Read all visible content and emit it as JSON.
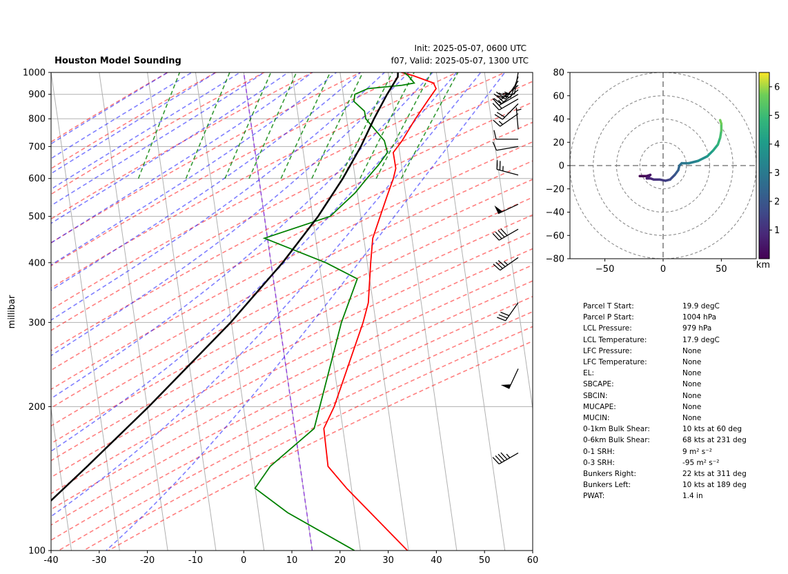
{
  "header": {
    "title": "Houston Model Sounding",
    "init": "Init: 2025-05-07, 0600 UTC",
    "valid": "f07, Valid: 2025-05-07, 1300 UTC"
  },
  "chart_data": [
    {
      "type": "line",
      "subtype": "skew-T log-P sounding",
      "title": "Houston Model Sounding",
      "ylabel": "millibar",
      "xlabel": "",
      "xlim": [
        -40,
        60
      ],
      "ylim": [
        1000,
        100
      ],
      "y_scale": "log",
      "x_ticks": [
        -40,
        -30,
        -20,
        -10,
        0,
        10,
        20,
        30,
        40,
        50,
        60
      ],
      "y_ticks": [
        100,
        200,
        300,
        400,
        500,
        600,
        700,
        800,
        900,
        1000
      ],
      "grid": true,
      "background_lines": [
        "dry adiabats (red dashed)",
        "moist adiabats (blue dashed)",
        "mixing ratio (green dashed)",
        "0 degC isotherm (purple dashed)",
        "skewed isotherms (gray)"
      ],
      "series": [
        {
          "role": "temperature",
          "color": "#ff0000",
          "points": [
            [
              1000,
              18.5
            ],
            [
              985,
              21.0
            ],
            [
              950,
              25.5
            ],
            [
              925,
              26.2
            ],
            [
              880,
              25.0
            ],
            [
              800,
              22.8
            ],
            [
              720,
              20.7
            ],
            [
              680,
              19.2
            ],
            [
              660,
              19.6
            ],
            [
              630,
              20.2
            ],
            [
              600,
              20.0
            ],
            [
              550,
              19.2
            ],
            [
              450,
              17.5
            ],
            [
              400,
              17.8
            ],
            [
              330,
              18.5
            ],
            [
              300,
              18.0
            ],
            [
              200,
              14.5
            ],
            [
              180,
              13.0
            ],
            [
              150,
              15.0
            ],
            [
              135,
              19.5
            ],
            [
              100,
              34.0
            ]
          ]
        },
        {
          "role": "dewpoint",
          "color": "#008000",
          "points": [
            [
              1000,
              19.0
            ],
            [
              985,
              20.0
            ],
            [
              950,
              21.5
            ],
            [
              940,
              19.0
            ],
            [
              925,
              12.0
            ],
            [
              900,
              9.5
            ],
            [
              870,
              9.5
            ],
            [
              830,
              12.0
            ],
            [
              800,
              12.5
            ],
            [
              720,
              17.0
            ],
            [
              680,
              18.0
            ],
            [
              640,
              16.5
            ],
            [
              600,
              14.5
            ],
            [
              560,
              12.5
            ],
            [
              500,
              8.0
            ],
            [
              450,
              -5.0
            ],
            [
              400,
              8.5
            ],
            [
              370,
              15.5
            ],
            [
              300,
              13.5
            ],
            [
              180,
              11.0
            ],
            [
              150,
              3.0
            ],
            [
              135,
              0.5
            ],
            [
              120,
              8.0
            ],
            [
              100,
              23.0
            ]
          ]
        },
        {
          "role": "parcel profile",
          "color": "#000000",
          "points": [
            [
              1000,
              17.8
            ],
            [
              979,
              17.9
            ],
            [
              900,
              16.2
            ],
            [
              800,
              14.2
            ],
            [
              700,
              12.3
            ],
            [
              600,
              9.5
            ],
            [
              500,
              5.5
            ],
            [
              400,
              -0.5
            ],
            [
              300,
              -9.5
            ],
            [
              250,
              -16.0
            ],
            [
              200,
              -24.0
            ],
            [
              150,
              -35.0
            ],
            [
              100,
              -51.0
            ]
          ]
        }
      ],
      "wind_barbs": [
        {
          "p": 1000,
          "speed_kt": 10,
          "dir_deg": 190
        },
        {
          "p": 980,
          "speed_kt": 20,
          "dir_deg": 200
        },
        {
          "p": 960,
          "speed_kt": 25,
          "dir_deg": 215
        },
        {
          "p": 940,
          "speed_kt": 20,
          "dir_deg": 230
        },
        {
          "p": 920,
          "speed_kt": 15,
          "dir_deg": 230
        },
        {
          "p": 900,
          "speed_kt": 15,
          "dir_deg": 240
        },
        {
          "p": 880,
          "speed_kt": 20,
          "dir_deg": 240
        },
        {
          "p": 860,
          "speed_kt": 20,
          "dir_deg": 225
        },
        {
          "p": 820,
          "speed_kt": 15,
          "dir_deg": 235
        },
        {
          "p": 760,
          "speed_kt": 5,
          "dir_deg": 355
        },
        {
          "p": 725,
          "speed_kt": 10,
          "dir_deg": 270
        },
        {
          "p": 700,
          "speed_kt": 10,
          "dir_deg": 260
        },
        {
          "p": 610,
          "speed_kt": 25,
          "dir_deg": 285
        },
        {
          "p": 530,
          "speed_kt": 50,
          "dir_deg": 245
        },
        {
          "p": 470,
          "speed_kt": 40,
          "dir_deg": 240
        },
        {
          "p": 410,
          "speed_kt": 35,
          "dir_deg": 235
        },
        {
          "p": 330,
          "speed_kt": 30,
          "dir_deg": 215
        },
        {
          "p": 240,
          "speed_kt": 50,
          "dir_deg": 205
        },
        {
          "p": 160,
          "speed_kt": 45,
          "dir_deg": 240
        }
      ]
    },
    {
      "type": "line",
      "subtype": "hodograph",
      "xlim": [
        -80,
        80
      ],
      "ylim": [
        -80,
        80
      ],
      "x_ticks": [
        -50,
        0,
        50
      ],
      "y_ticks": [
        -80,
        -60,
        -40,
        -20,
        0,
        20,
        40,
        60,
        80
      ],
      "rings": [
        20,
        40,
        60,
        80
      ],
      "colorbar": {
        "label": "km",
        "range": [
          0,
          6.5
        ],
        "ticks": [
          1,
          2,
          3,
          4,
          5,
          6
        ],
        "colormap": "viridis"
      },
      "points": [
        [
          -20,
          -9,
          0.0
        ],
        [
          -14,
          -9,
          0.2
        ],
        [
          -11,
          -8,
          0.4
        ],
        [
          -14,
          -11,
          0.6
        ],
        [
          -11,
          -11,
          0.8
        ],
        [
          -8,
          -12,
          1.0
        ],
        [
          -3,
          -12,
          1.2
        ],
        [
          2,
          -13,
          1.4
        ],
        [
          6,
          -12,
          1.7
        ],
        [
          10,
          -8,
          2.0
        ],
        [
          13,
          -4,
          2.3
        ],
        [
          14,
          0,
          2.6
        ],
        [
          16,
          2,
          2.9
        ],
        [
          22,
          2,
          3.2
        ],
        [
          30,
          4,
          3.6
        ],
        [
          38,
          8,
          4.0
        ],
        [
          43,
          13,
          4.4
        ],
        [
          47,
          18,
          4.8
        ],
        [
          49,
          24,
          5.1
        ],
        [
          50,
          30,
          5.4
        ],
        [
          50,
          36,
          5.7
        ],
        [
          49,
          39,
          6.0
        ]
      ]
    }
  ],
  "parameters": [
    {
      "label": "Parcel T Start:",
      "value": "19.9 degC"
    },
    {
      "label": "Parcel P Start:",
      "value": "1004 hPa"
    },
    {
      "label": "LCL Pressure:",
      "value": "979 hPa"
    },
    {
      "label": "LCL Temperature:",
      "value": "17.9 degC"
    },
    {
      "label": "LFC Pressure:",
      "value": "None"
    },
    {
      "label": "LFC Temperature:",
      "value": "None"
    },
    {
      "label": "EL:",
      "value": "None"
    },
    {
      "label": "SBCAPE:",
      "value": "None"
    },
    {
      "label": "SBCIN:",
      "value": "None"
    },
    {
      "label": "MUCAPE:",
      "value": "None"
    },
    {
      "label": "MUCIN:",
      "value": "None"
    },
    {
      "label": "0-1km Bulk Shear:",
      "value": "10 kts at 60 deg"
    },
    {
      "label": "0-6km Bulk Shear:",
      "value": "68 kts at 231 deg"
    },
    {
      "label": "0-1 SRH:",
      "value": "9 m² s⁻²"
    },
    {
      "label": "0-3 SRH:",
      "value": "-95 m² s⁻²"
    },
    {
      "label": "Bunkers Right:",
      "value": "22 kts at 311 deg"
    },
    {
      "label": "Bunkers Left:",
      "value": "10 kts at 189 deg"
    },
    {
      "label": "PWAT:",
      "value": "1.4 in"
    }
  ]
}
